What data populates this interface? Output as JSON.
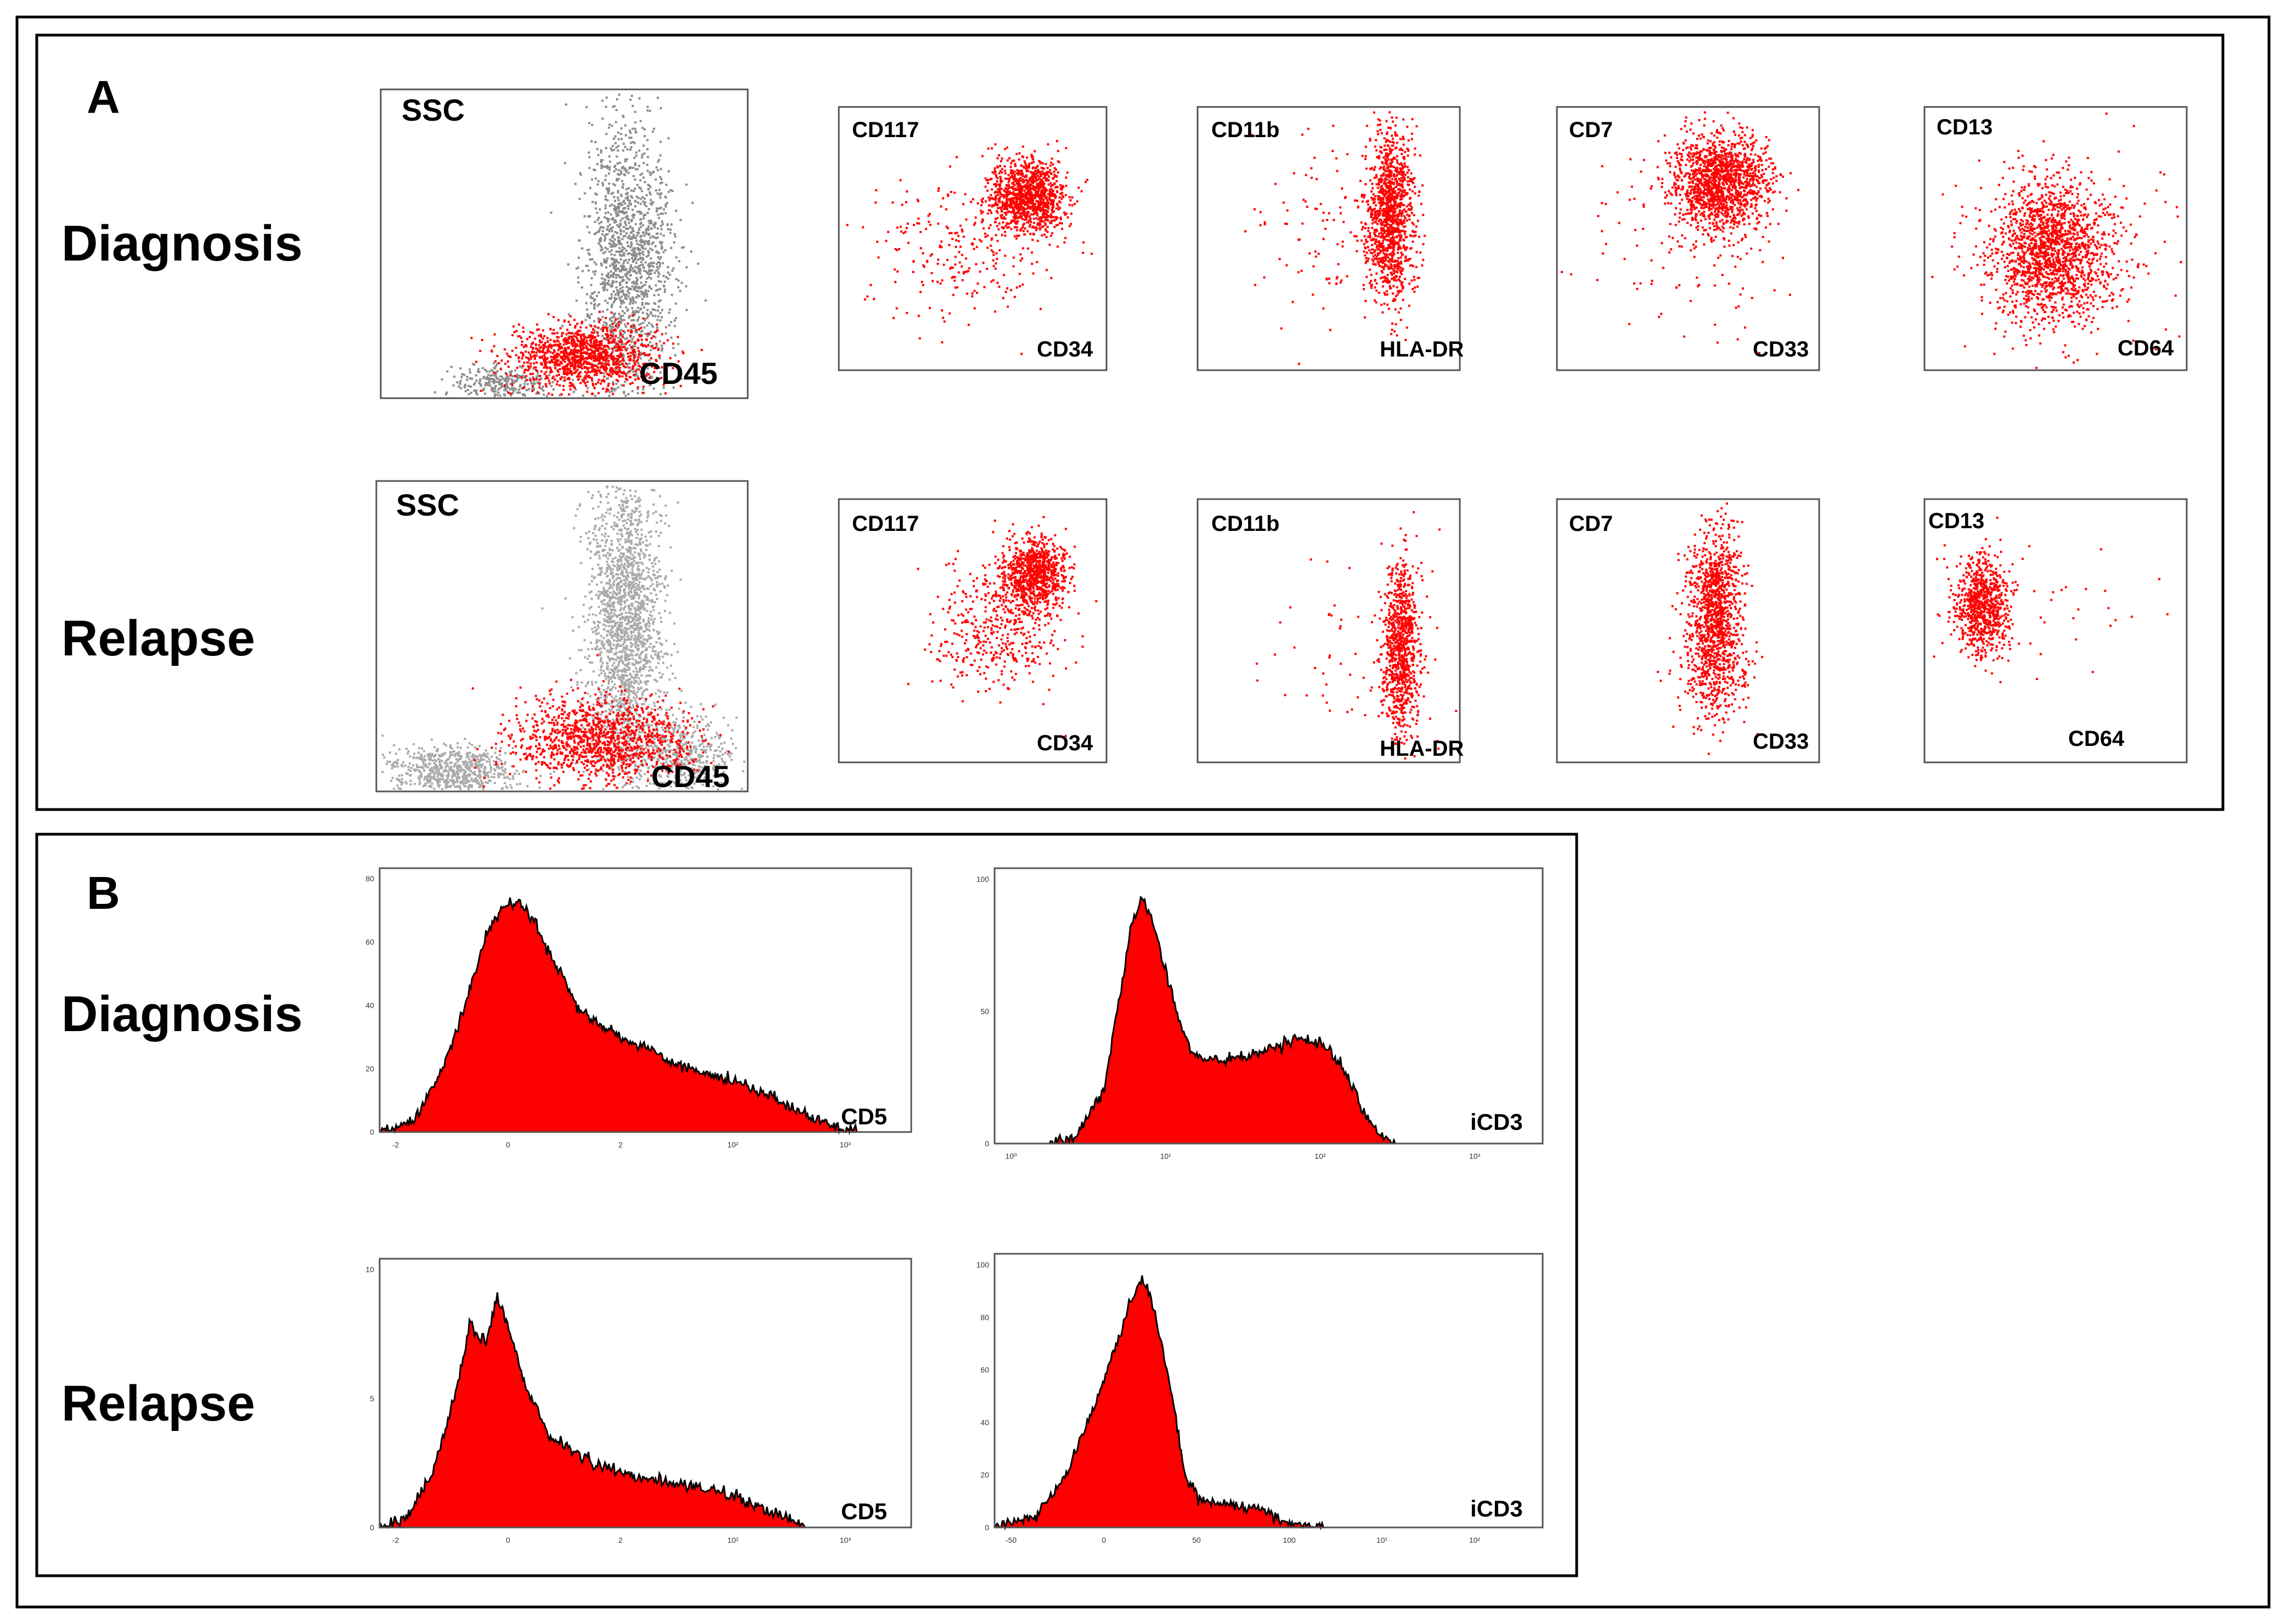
{
  "panels": [
    {
      "letter": "A",
      "rows": [
        {
          "label": "Diagnosis",
          "plots": [
            {
              "ylabel": "SSC",
              "xlabel": "CD45"
            },
            {
              "ylabel": "CD117",
              "xlabel": "CD34"
            },
            {
              "ylabel": "CD11b",
              "xlabel": "HLA-DR"
            },
            {
              "ylabel": "CD7",
              "xlabel": "CD33"
            },
            {
              "ylabel": "CD13",
              "xlabel": "CD64"
            }
          ]
        },
        {
          "label": "Relapse",
          "plots": [
            {
              "ylabel": "SSC",
              "xlabel": "CD45"
            },
            {
              "ylabel": "CD117",
              "xlabel": "CD34"
            },
            {
              "ylabel": "CD11b",
              "xlabel": "HLA-DR"
            },
            {
              "ylabel": "CD7",
              "xlabel": "CD33"
            },
            {
              "ylabel": "CD13",
              "xlabel": "CD64"
            }
          ]
        }
      ]
    },
    {
      "letter": "B",
      "rows": [
        {
          "label": "Diagnosis",
          "plots": [
            {
              "xlabel": "CD5",
              "xticks": [
                "-2",
                "0",
                "2",
                "10²",
                "10³"
              ],
              "yticks": [
                "0",
                "20",
                "40",
                "60",
                "80"
              ]
            },
            {
              "xlabel": "iCD3",
              "xticks": [
                "10⁰",
                "10¹",
                "10²",
                "10³"
              ],
              "yticks": [
                "0",
                "50",
                "100"
              ]
            }
          ]
        },
        {
          "label": "Relapse",
          "plots": [
            {
              "xlabel": "CD5",
              "xticks": [
                "-2",
                "0",
                "2",
                "10²",
                "10³"
              ],
              "yticks": [
                "0",
                "5",
                "10"
              ]
            },
            {
              "xlabel": "iCD3",
              "xticks": [
                "-50",
                "0",
                "50",
                "100",
                "10¹",
                "10²"
              ],
              "yticks": [
                "0",
                "20",
                "40",
                "60",
                "80",
                "100"
              ]
            }
          ]
        }
      ]
    }
  ],
  "colors": {
    "gated_events": "#ff0000",
    "other_events": "#8c8c8c",
    "histogram_fill": "#ff0000",
    "histogram_outline": "#000000",
    "frame": "#000000"
  },
  "chart_data": [
    {
      "type": "scatter",
      "row": "Diagnosis",
      "xlabel": "CD45",
      "ylabel": "SSC",
      "series": [
        {
          "color": "#8c8c8c",
          "clusters": [
            {
              "cx": 0.33,
              "cy": 0.05,
              "sx": 0.07,
              "sy": 0.03,
              "n": 300
            },
            {
              "cx": 0.67,
              "cy": 0.45,
              "sx": 0.06,
              "sy": 0.22,
              "n": 1500
            }
          ]
        },
        {
          "color": "#ff0000",
          "clusters": [
            {
              "cx": 0.55,
              "cy": 0.14,
              "sx": 0.1,
              "sy": 0.05,
              "n": 1200
            }
          ]
        }
      ]
    },
    {
      "type": "scatter",
      "row": "Diagnosis",
      "xlabel": "CD34",
      "ylabel": "CD117",
      "series": [
        {
          "color": "#ff0000",
          "clusters": [
            {
              "cx": 0.7,
              "cy": 0.66,
              "sx": 0.07,
              "sy": 0.07,
              "n": 1100
            },
            {
              "cx": 0.45,
              "cy": 0.45,
              "sx": 0.18,
              "sy": 0.15,
              "n": 250
            }
          ]
        }
      ]
    },
    {
      "type": "scatter",
      "row": "Diagnosis",
      "xlabel": "HLA-DR",
      "ylabel": "CD11b",
      "series": [
        {
          "color": "#ff0000",
          "clusters": [
            {
              "cx": 0.73,
              "cy": 0.6,
              "sx": 0.045,
              "sy": 0.16,
              "n": 1200
            },
            {
              "cx": 0.5,
              "cy": 0.55,
              "sx": 0.15,
              "sy": 0.2,
              "n": 100
            }
          ]
        }
      ]
    },
    {
      "type": "scatter",
      "row": "Diagnosis",
      "xlabel": "CD33",
      "ylabel": "CD7",
      "series": [
        {
          "color": "#ff0000",
          "clusters": [
            {
              "cx": 0.62,
              "cy": 0.72,
              "sx": 0.09,
              "sy": 0.09,
              "n": 1400
            },
            {
              "cx": 0.5,
              "cy": 0.5,
              "sx": 0.2,
              "sy": 0.2,
              "n": 120
            }
          ]
        }
      ]
    },
    {
      "type": "scatter",
      "row": "Diagnosis",
      "xlabel": "CD64",
      "ylabel": "CD13",
      "series": [
        {
          "color": "#ff0000",
          "clusters": [
            {
              "cx": 0.48,
              "cy": 0.45,
              "sx": 0.11,
              "sy": 0.13,
              "n": 1600
            },
            {
              "cx": 0.5,
              "cy": 0.5,
              "sx": 0.25,
              "sy": 0.2,
              "n": 150
            }
          ]
        }
      ]
    },
    {
      "type": "scatter",
      "row": "Relapse",
      "xlabel": "CD45",
      "ylabel": "SSC",
      "series": [
        {
          "color": "#aaaaaa",
          "clusters": [
            {
              "cx": 0.2,
              "cy": 0.07,
              "sx": 0.09,
              "sy": 0.04,
              "n": 700
            },
            {
              "cx": 0.67,
              "cy": 0.55,
              "sx": 0.05,
              "sy": 0.26,
              "n": 2000
            },
            {
              "cx": 0.82,
              "cy": 0.12,
              "sx": 0.07,
              "sy": 0.06,
              "n": 500
            }
          ]
        },
        {
          "color": "#ff0000",
          "clusters": [
            {
              "cx": 0.6,
              "cy": 0.17,
              "sx": 0.12,
              "sy": 0.07,
              "n": 1200
            }
          ]
        }
      ]
    },
    {
      "type": "scatter",
      "row": "Relapse",
      "xlabel": "CD34",
      "ylabel": "CD117",
      "series": [
        {
          "color": "#ff0000",
          "clusters": [
            {
              "cx": 0.73,
              "cy": 0.72,
              "sx": 0.06,
              "sy": 0.07,
              "n": 900
            },
            {
              "cx": 0.58,
              "cy": 0.5,
              "sx": 0.12,
              "sy": 0.12,
              "n": 400
            }
          ]
        }
      ]
    },
    {
      "type": "scatter",
      "row": "Relapse",
      "xlabel": "HLA-DR",
      "ylabel": "CD11b",
      "series": [
        {
          "color": "#ff0000",
          "clusters": [
            {
              "cx": 0.77,
              "cy": 0.44,
              "sx": 0.035,
              "sy": 0.17,
              "n": 900
            },
            {
              "cx": 0.6,
              "cy": 0.4,
              "sx": 0.2,
              "sy": 0.2,
              "n": 60
            }
          ]
        }
      ]
    },
    {
      "type": "scatter",
      "row": "Relapse",
      "xlabel": "CD33",
      "ylabel": "CD7",
      "series": [
        {
          "color": "#ff0000",
          "clusters": [
            {
              "cx": 0.6,
              "cy": 0.6,
              "sx": 0.05,
              "sy": 0.15,
              "n": 1000
            },
            {
              "cx": 0.6,
              "cy": 0.35,
              "sx": 0.07,
              "sy": 0.12,
              "n": 300
            }
          ]
        }
      ]
    },
    {
      "type": "scatter",
      "row": "Relapse",
      "xlabel": "CD64",
      "ylabel": "CD13",
      "series": [
        {
          "color": "#ff0000",
          "clusters": [
            {
              "cx": 0.22,
              "cy": 0.6,
              "sx": 0.05,
              "sy": 0.09,
              "n": 800
            },
            {
              "cx": 0.5,
              "cy": 0.6,
              "sx": 0.25,
              "sy": 0.15,
              "n": 40
            }
          ]
        }
      ]
    },
    {
      "type": "area",
      "row": "Diagnosis",
      "xlabel": "CD5",
      "x": [
        "-2",
        "0",
        "2",
        "10²",
        "10³"
      ],
      "ylim": [
        0,
        80
      ],
      "curve": [
        [
          0,
          0
        ],
        [
          0.06,
          3
        ],
        [
          0.12,
          20
        ],
        [
          0.17,
          45
        ],
        [
          0.2,
          62
        ],
        [
          0.23,
          71
        ],
        [
          0.26,
          73
        ],
        [
          0.29,
          67
        ],
        [
          0.33,
          53
        ],
        [
          0.37,
          40
        ],
        [
          0.42,
          33
        ],
        [
          0.48,
          28
        ],
        [
          0.55,
          22
        ],
        [
          0.63,
          18
        ],
        [
          0.7,
          14
        ],
        [
          0.77,
          8
        ],
        [
          0.83,
          3
        ],
        [
          0.88,
          1
        ],
        [
          0.9,
          0
        ],
        [
          1,
          0
        ]
      ]
    },
    {
      "type": "area",
      "row": "Diagnosis",
      "xlabel": "iCD3",
      "x": [
        "10⁰",
        "10¹",
        "10²",
        "10³"
      ],
      "ylim": [
        0,
        120
      ],
      "curve": [
        [
          0,
          0
        ],
        [
          0.1,
          0
        ],
        [
          0.15,
          3
        ],
        [
          0.2,
          25
        ],
        [
          0.23,
          70
        ],
        [
          0.25,
          100
        ],
        [
          0.27,
          112
        ],
        [
          0.29,
          100
        ],
        [
          0.32,
          70
        ],
        [
          0.35,
          45
        ],
        [
          0.38,
          38
        ],
        [
          0.45,
          38
        ],
        [
          0.5,
          43
        ],
        [
          0.55,
          48
        ],
        [
          0.6,
          45
        ],
        [
          0.64,
          33
        ],
        [
          0.67,
          16
        ],
        [
          0.7,
          5
        ],
        [
          0.73,
          0
        ],
        [
          1,
          0
        ]
      ]
    },
    {
      "type": "area",
      "row": "Relapse",
      "xlabel": "CD5",
      "x": [
        "-2",
        "0",
        "2",
        "10²",
        "10³"
      ],
      "ylim": [
        0,
        14
      ],
      "curve": [
        [
          0,
          0
        ],
        [
          0.05,
          0.5
        ],
        [
          0.1,
          3
        ],
        [
          0.14,
          7
        ],
        [
          0.17,
          11
        ],
        [
          0.2,
          10
        ],
        [
          0.22,
          12.5
        ],
        [
          0.24,
          11
        ],
        [
          0.27,
          8
        ],
        [
          0.32,
          5
        ],
        [
          0.4,
          3.5
        ],
        [
          0.48,
          2.8
        ],
        [
          0.56,
          2.4
        ],
        [
          0.65,
          1.8
        ],
        [
          0.72,
          1
        ],
        [
          0.78,
          0.4
        ],
        [
          0.8,
          0
        ],
        [
          1,
          0
        ]
      ]
    },
    {
      "type": "area",
      "row": "Relapse",
      "xlabel": "iCD3",
      "x": [
        "-50",
        "0",
        "50",
        "100",
        "10¹",
        "10²"
      ],
      "ylim": [
        0,
        110
      ],
      "curve": [
        [
          0,
          0
        ],
        [
          0.08,
          5
        ],
        [
          0.13,
          22
        ],
        [
          0.18,
          50
        ],
        [
          0.22,
          75
        ],
        [
          0.25,
          95
        ],
        [
          0.27,
          105
        ],
        [
          0.29,
          92
        ],
        [
          0.32,
          60
        ],
        [
          0.35,
          20
        ],
        [
          0.38,
          10
        ],
        [
          0.43,
          10
        ],
        [
          0.48,
          8
        ],
        [
          0.52,
          3
        ],
        [
          0.56,
          1
        ],
        [
          0.6,
          0
        ],
        [
          1,
          0
        ]
      ]
    }
  ]
}
